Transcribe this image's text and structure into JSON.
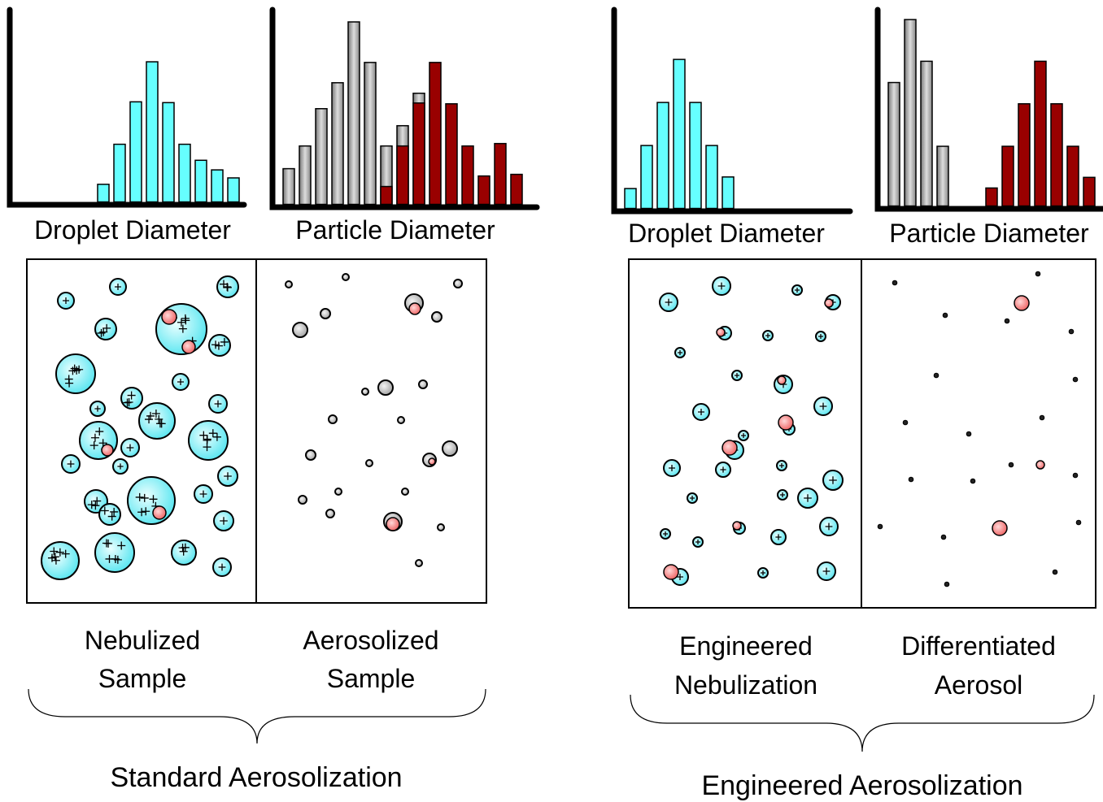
{
  "panels": [
    {
      "histograms": [
        {
          "label": "Droplet Diameter",
          "ylim": [
            0,
            240
          ],
          "series": [
            {
              "color": "#66ffff",
              "values": [
                22,
                72,
                125,
                175,
                124,
                72,
                52,
                40,
                30
              ]
            }
          ]
        },
        {
          "label": "Particle Diameter",
          "ylim": [
            0,
            240
          ],
          "series": [
            {
              "color": "#a8a8a8",
              "values": [
                44,
                72,
                118,
                150,
                225,
                175,
                72,
                97,
                137,
                null,
                null,
                null,
                null,
                null,
                null
              ]
            },
            {
              "color": "#990000",
              "values": [
                null,
                null,
                null,
                null,
                null,
                null,
                22,
                72,
                125,
                175,
                124,
                72,
                35,
                75,
                37
              ]
            }
          ]
        }
      ],
      "boxes": [
        {
          "label": [
            "Nebulized",
            "Sample"
          ]
        },
        {
          "label": [
            "Aerosolized",
            "Sample"
          ]
        }
      ],
      "caption": "Standard Aerosolization"
    },
    {
      "histograms": [
        {
          "label": "Droplet Diameter",
          "ylim": [
            0,
            240
          ],
          "series": [
            {
              "color": "#66ffff",
              "values": [
                24,
                76,
                128,
                180,
                128,
                76,
                38
              ]
            }
          ]
        },
        {
          "label": "Particle Diameter",
          "ylim": [
            0,
            240
          ],
          "series": [
            {
              "color": "#a8a8a8",
              "values": [
                151,
                228,
                177,
                73,
                null,
                null,
                null,
                null,
                null,
                null,
                null,
                null,
                null
              ]
            },
            {
              "color": "#990000",
              "values": [
                null,
                null,
                null,
                null,
                null,
                null,
                22,
                73,
                125,
                177,
                125,
                73,
                35
              ]
            }
          ]
        }
      ],
      "boxes": [
        {
          "label": [
            "Engineered",
            "Nebulization"
          ]
        },
        {
          "label": [
            "Differentiated",
            "Aerosol"
          ]
        }
      ],
      "caption": "Engineered Aerosolization"
    }
  ]
}
